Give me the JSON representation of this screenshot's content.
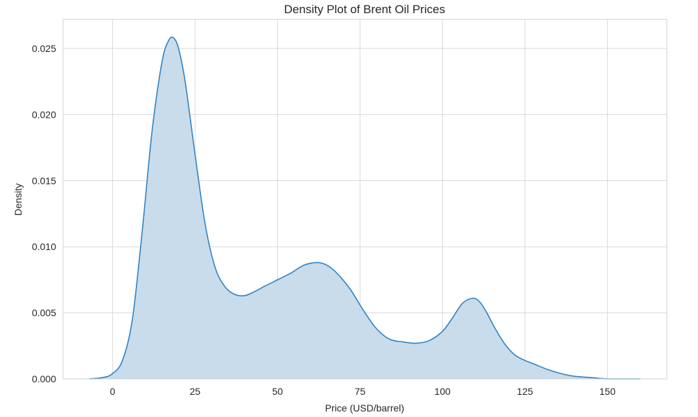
{
  "chart_data": {
    "type": "area",
    "title": "Density Plot of Brent Oil Prices",
    "xlabel": "Price (USD/barrel)",
    "ylabel": "Density",
    "xlim": [
      -15,
      168
    ],
    "ylim": [
      0,
      0.0272
    ],
    "xticks": [
      0,
      25,
      50,
      75,
      100,
      125,
      150
    ],
    "yticks": [
      0.0,
      0.005,
      0.01,
      0.015,
      0.02,
      0.025
    ],
    "ytick_labels": [
      "0.000",
      "0.005",
      "0.010",
      "0.015",
      "0.020",
      "0.025"
    ],
    "grid": true,
    "legend": "none",
    "series": [
      {
        "x": [
          -7,
          -3,
          0,
          3,
          6,
          9,
          12,
          15,
          17,
          18.5,
          20,
          22,
          25,
          28,
          31,
          34,
          37,
          40,
          43,
          46,
          50,
          54,
          58,
          62,
          65,
          68,
          72,
          76,
          80,
          84,
          88,
          92,
          96,
          100,
          103,
          106,
          109,
          111,
          113,
          116,
          119,
          122,
          125,
          128,
          132,
          136,
          140,
          145,
          150,
          155,
          160
        ],
        "y": [
          0.0,
          0.0001,
          0.0004,
          0.0014,
          0.0045,
          0.0112,
          0.0188,
          0.024,
          0.0256,
          0.0258,
          0.025,
          0.0225,
          0.017,
          0.0118,
          0.0085,
          0.007,
          0.0064,
          0.0063,
          0.0066,
          0.007,
          0.0075,
          0.008,
          0.0086,
          0.0088,
          0.0086,
          0.008,
          0.0068,
          0.0052,
          0.0038,
          0.003,
          0.0028,
          0.0027,
          0.0029,
          0.0036,
          0.0046,
          0.0057,
          0.0061,
          0.0059,
          0.0052,
          0.0038,
          0.0026,
          0.0018,
          0.0014,
          0.0011,
          0.0007,
          0.0004,
          0.0002,
          0.0001,
          0.0,
          0.0,
          0.0
        ]
      }
    ],
    "colors": {
      "line": "#3282c0",
      "fill": "#c5daeb",
      "grid": "#d9d9d9",
      "frame": "#d0d0d0",
      "text": "#262626"
    }
  }
}
